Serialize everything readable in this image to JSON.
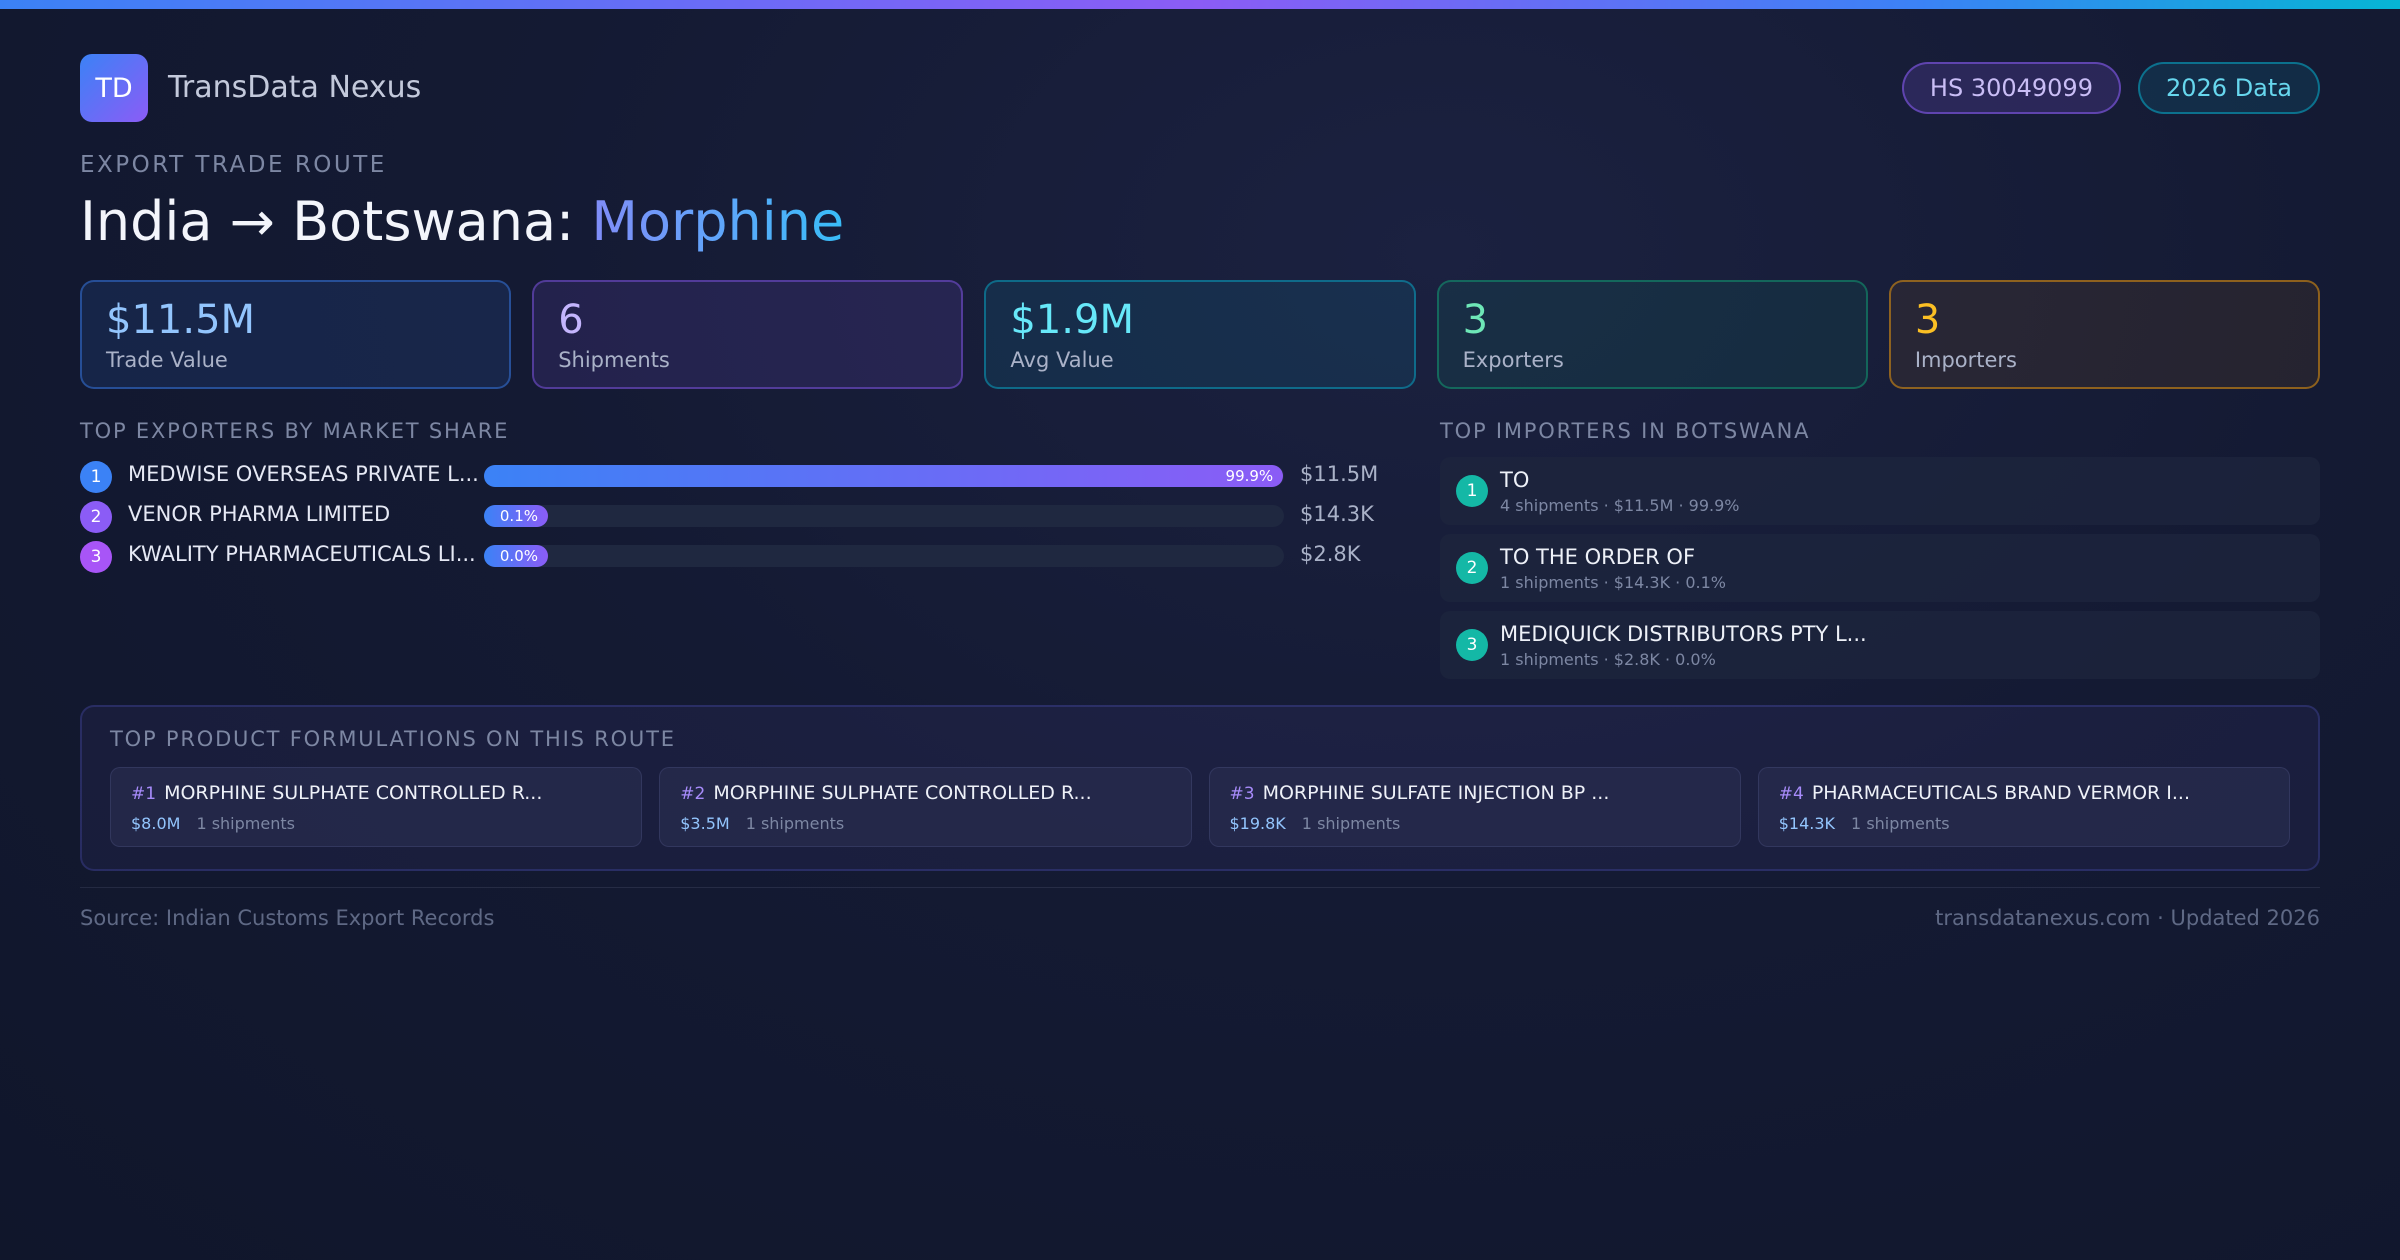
{
  "header": {
    "logo_text": "TD",
    "brand": "TransData Nexus",
    "hs_code": "HS 30049099",
    "data_year": "2026 Data"
  },
  "route": {
    "eyebrow": "EXPORT TRADE ROUTE",
    "title_prefix": "India → Botswana: ",
    "product": "Morphine"
  },
  "stats": [
    {
      "value": "$11.5M",
      "label": "Trade Value"
    },
    {
      "value": "6",
      "label": "Shipments"
    },
    {
      "value": "$1.9M",
      "label": "Avg Value"
    },
    {
      "value": "3",
      "label": "Exporters"
    },
    {
      "value": "3",
      "label": "Importers"
    }
  ],
  "exporters": {
    "title": "TOP EXPORTERS BY MARKET SHARE",
    "items": [
      {
        "rank": "1",
        "name": "MEDWISE OVERSEAS PRIVATE L...",
        "share_label": "99.9%",
        "share": 99.9,
        "value": "$11.5M",
        "color": "#3b82f6"
      },
      {
        "rank": "2",
        "name": "VENOR PHARMA LIMITED",
        "share_label": "0.1%",
        "share": 0.1,
        "value": "$14.3K",
        "color": "#8b5cf6"
      },
      {
        "rank": "3",
        "name": "KWALITY PHARMACEUTICALS LI...",
        "share_label": "0.0%",
        "share": 0.0,
        "value": "$2.8K",
        "color": "#a855f7"
      }
    ]
  },
  "importers": {
    "title": "TOP IMPORTERS IN BOTSWANA",
    "items": [
      {
        "rank": "1",
        "name": "TO",
        "meta": "4 shipments · $11.5M · 99.9%"
      },
      {
        "rank": "2",
        "name": "TO THE ORDER OF",
        "meta": "1 shipments · $14.3K · 0.1%"
      },
      {
        "rank": "3",
        "name": "MEDIQUICK DISTRIBUTORS PTY L...",
        "meta": "1 shipments · $2.8K · 0.0%"
      }
    ]
  },
  "formulations": {
    "title": "TOP PRODUCT FORMULATIONS ON THIS ROUTE",
    "items": [
      {
        "rank": "#1",
        "name": "MORPHINE SULPHATE CONTROLLED R...",
        "value": "$8.0M",
        "shipments": "1 shipments"
      },
      {
        "rank": "#2",
        "name": "MORPHINE SULPHATE CONTROLLED R...",
        "value": "$3.5M",
        "shipments": "1 shipments"
      },
      {
        "rank": "#3",
        "name": "MORPHINE SULFATE INJECTION BP ...",
        "value": "$19.8K",
        "shipments": "1 shipments"
      },
      {
        "rank": "#4",
        "name": "PHARMACEUTICALS BRAND VERMOR I...",
        "value": "$14.3K",
        "shipments": "1 shipments"
      }
    ]
  },
  "footer": {
    "source": "Source: Indian Customs Export Records",
    "site": "transdatanexus.com · Updated 2026"
  }
}
